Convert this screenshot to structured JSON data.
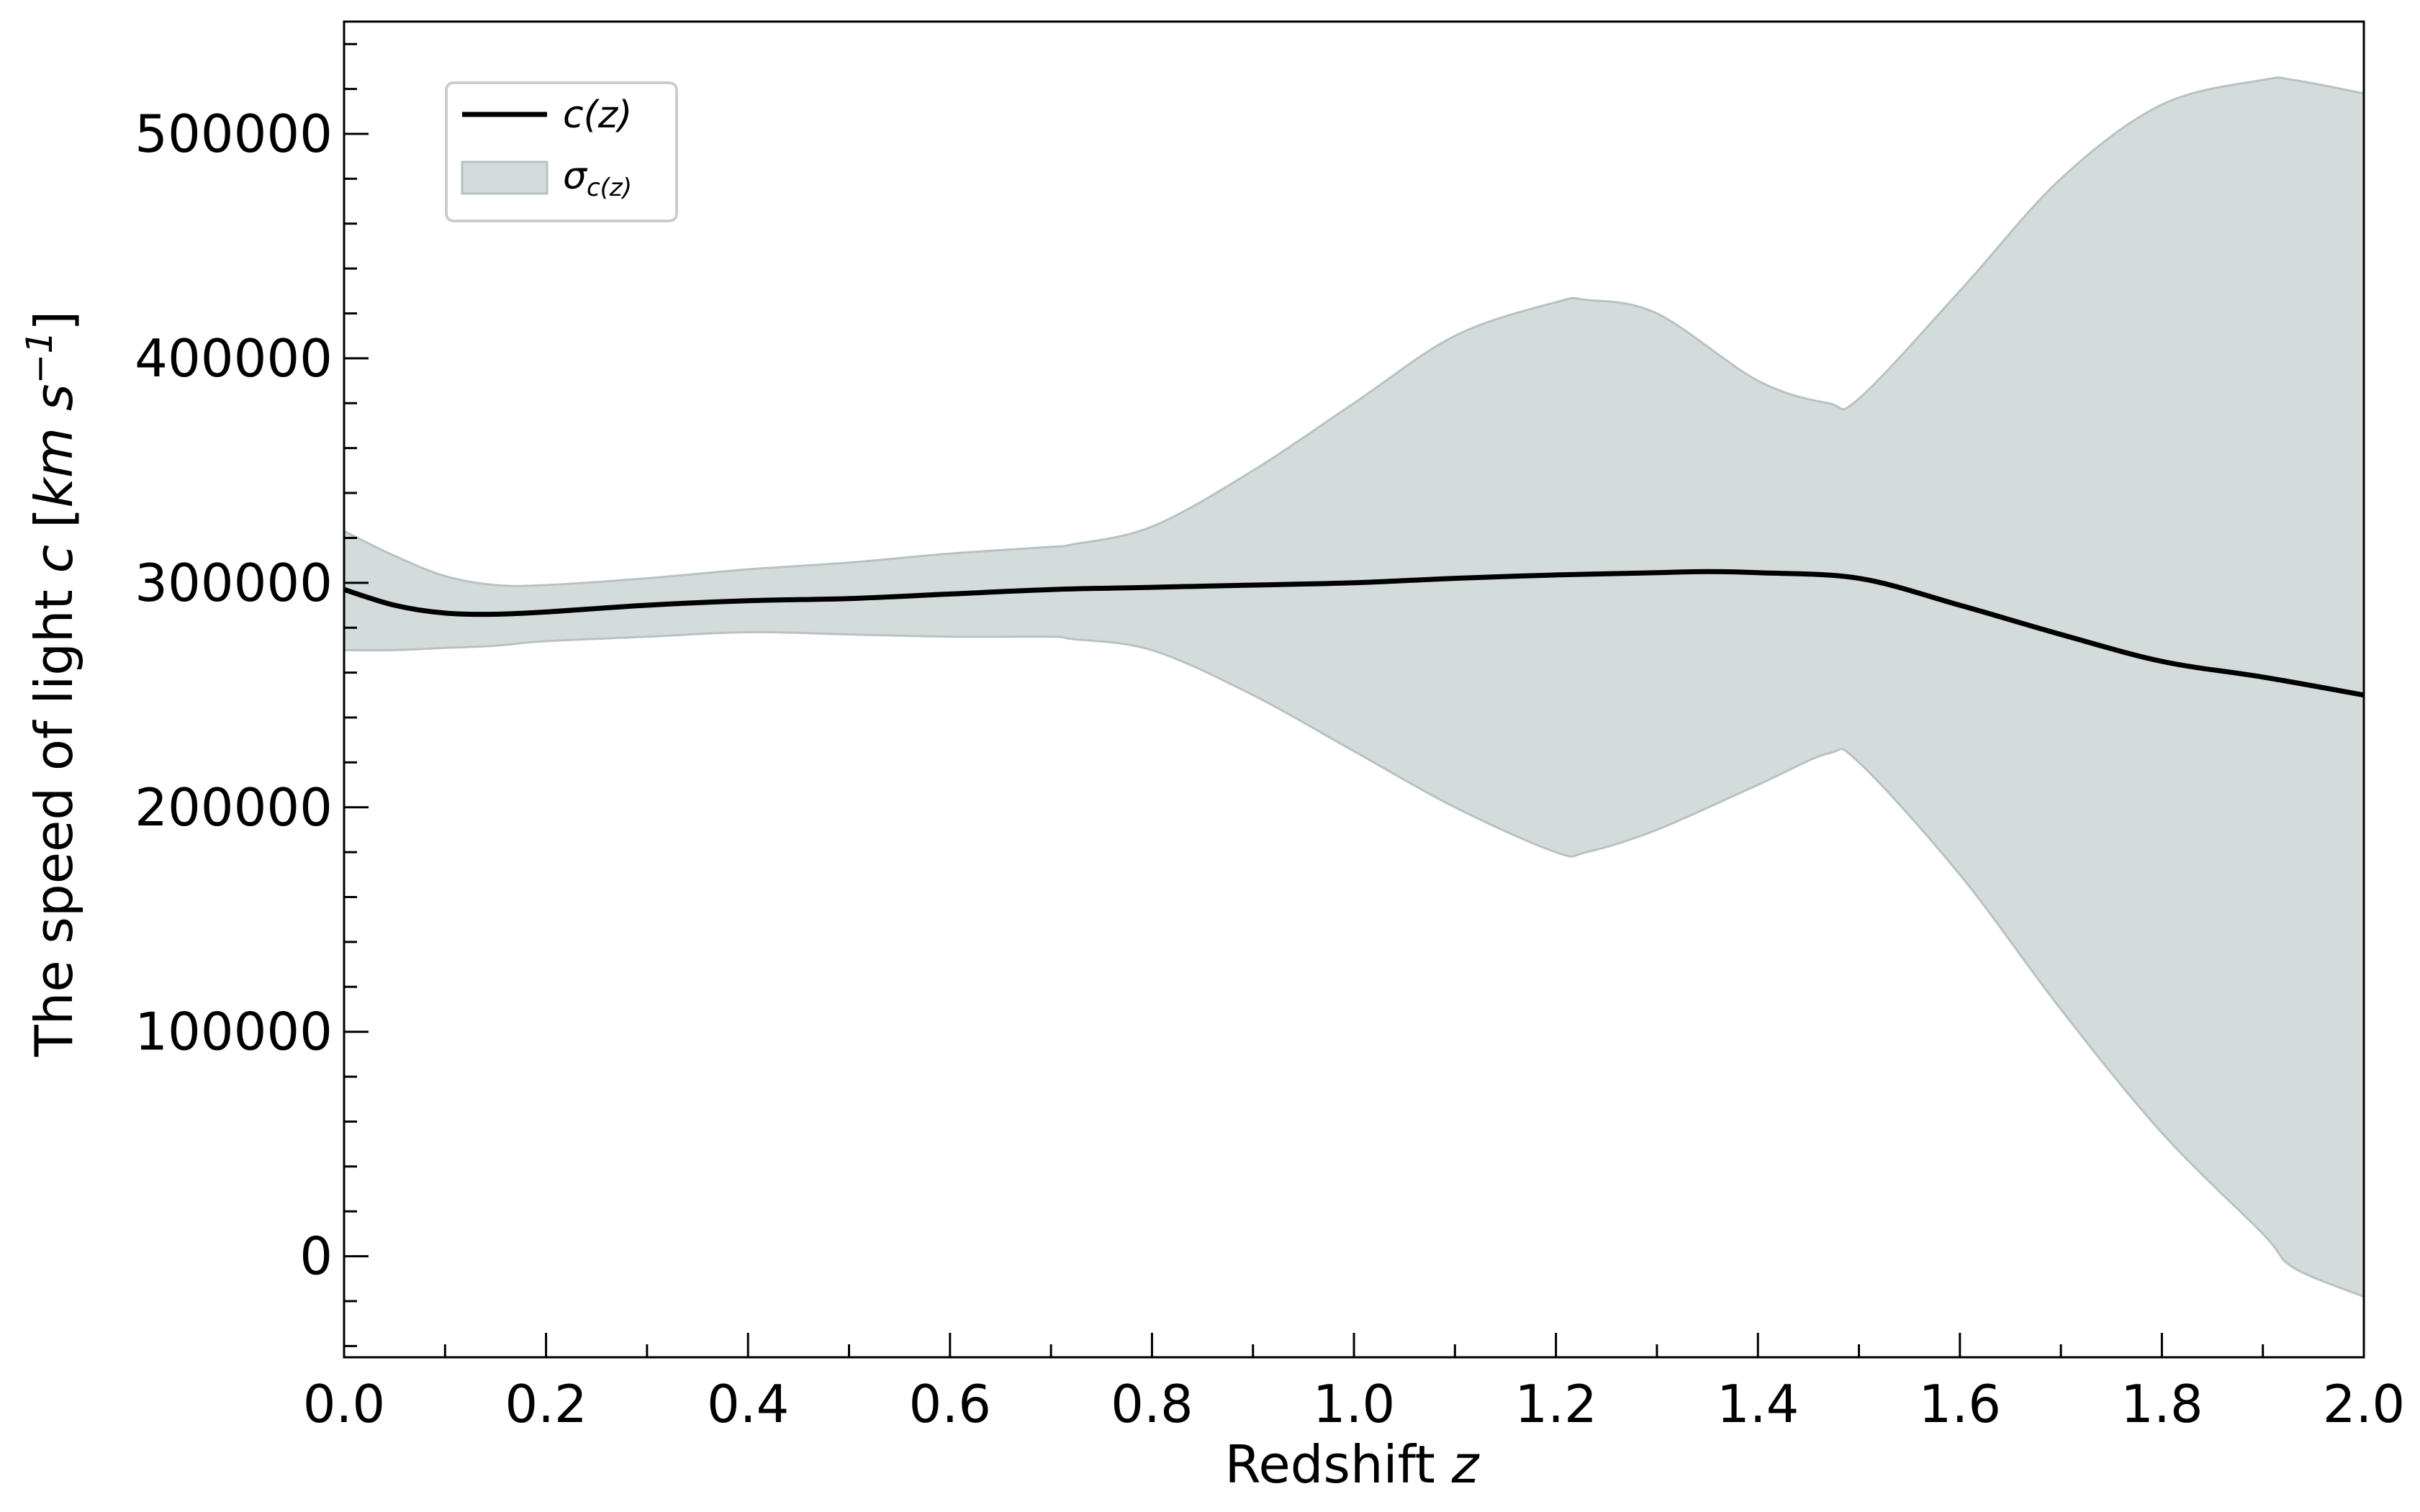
{
  "chart_data": {
    "type": "line",
    "xlabel": {
      "prefix": "Redshift ",
      "var": "z"
    },
    "ylabel": {
      "prefix": "The speed of light ",
      "var": "c",
      "unit_open": " [",
      "unit": "km s",
      "exp": "−1",
      "unit_close": "]"
    },
    "xlim": [
      0.0,
      2.0
    ],
    "ylim": [
      -45000,
      550000
    ],
    "x_ticks": [
      "0.0",
      "0.2",
      "0.4",
      "0.6",
      "0.8",
      "1.0",
      "1.2",
      "1.4",
      "1.6",
      "1.8",
      "2.0"
    ],
    "y_ticks": [
      "0",
      "100000",
      "200000",
      "300000",
      "400000",
      "500000"
    ],
    "grid": false,
    "legend_placement": "top-left",
    "legend": {
      "line_label": "c(z)",
      "band_label_main": "σ",
      "band_label_sub": "c(z)"
    },
    "colors": {
      "line": "#000000",
      "band_fill": "#d4dbdb",
      "band_edge": "#b8c2c2"
    },
    "series": [
      {
        "name": "c(z)",
        "x": [
          0.0,
          0.05,
          0.1,
          0.15,
          0.2,
          0.3,
          0.4,
          0.5,
          0.6,
          0.7,
          0.8,
          0.9,
          1.0,
          1.1,
          1.2,
          1.3,
          1.35,
          1.4,
          1.5,
          1.6,
          1.7,
          1.8,
          1.9,
          2.0
        ],
        "y": [
          297000,
          290000,
          286500,
          286000,
          287000,
          290000,
          292000,
          293000,
          295000,
          297000,
          298000,
          299000,
          300000,
          302000,
          303500,
          304500,
          305000,
          304500,
          302000,
          290000,
          277000,
          265000,
          258000,
          250000
        ]
      },
      {
        "name": "σc(z)",
        "x": [
          0.0,
          0.05,
          0.1,
          0.15,
          0.2,
          0.3,
          0.4,
          0.5,
          0.6,
          0.7,
          0.72,
          0.8,
          0.9,
          1.0,
          1.1,
          1.2,
          1.23,
          1.3,
          1.4,
          1.47,
          1.5,
          1.6,
          1.7,
          1.8,
          1.9,
          1.93,
          2.0
        ],
        "upper": [
          323000,
          312000,
          303000,
          299000,
          299000,
          302000,
          306000,
          309000,
          313000,
          316000,
          317000,
          325000,
          350000,
          380000,
          410000,
          425000,
          426000,
          420000,
          390000,
          380000,
          382000,
          430000,
          480000,
          513000,
          524000,
          524000,
          518000
        ],
        "lower": [
          270000,
          270000,
          271000,
          272000,
          274000,
          276000,
          278000,
          277000,
          276000,
          276000,
          275000,
          270000,
          250000,
          225000,
          200000,
          180000,
          180000,
          190000,
          210000,
          224000,
          220000,
          170000,
          110000,
          55000,
          10000,
          -5000,
          -18000
        ]
      }
    ]
  }
}
